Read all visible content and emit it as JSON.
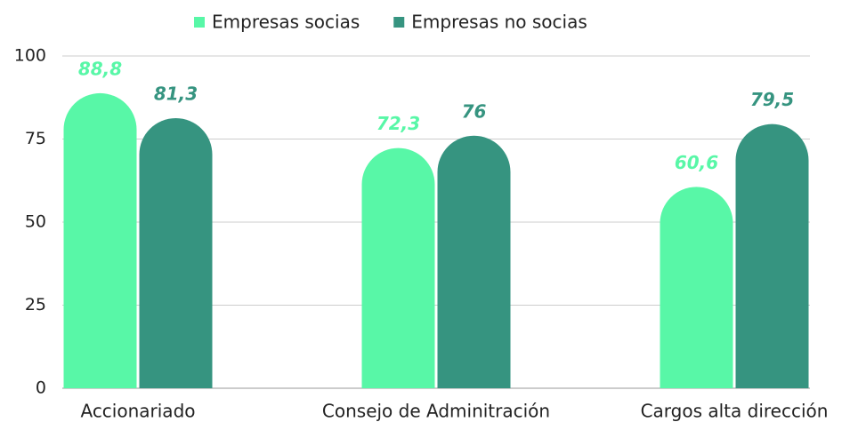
{
  "chart_data": {
    "type": "bar",
    "categories": [
      "Accionariado",
      "Consejo de Adminitración",
      "Cargos alta dirección"
    ],
    "series": [
      {
        "name": "Empresas socias",
        "color": "#58f7a7",
        "values": [
          88.8,
          72.3,
          60.6
        ],
        "value_labels": [
          "88,8",
          "72,3",
          "60,6"
        ]
      },
      {
        "name": "Empresas no socias",
        "color": "#369480",
        "values": [
          81.3,
          76,
          79.5
        ],
        "value_labels": [
          "81,3",
          "76",
          "79,5"
        ]
      }
    ],
    "ylim": [
      0,
      100
    ],
    "yticks": [
      0,
      25,
      50,
      75,
      100
    ],
    "grid": true,
    "legend": "top"
  }
}
